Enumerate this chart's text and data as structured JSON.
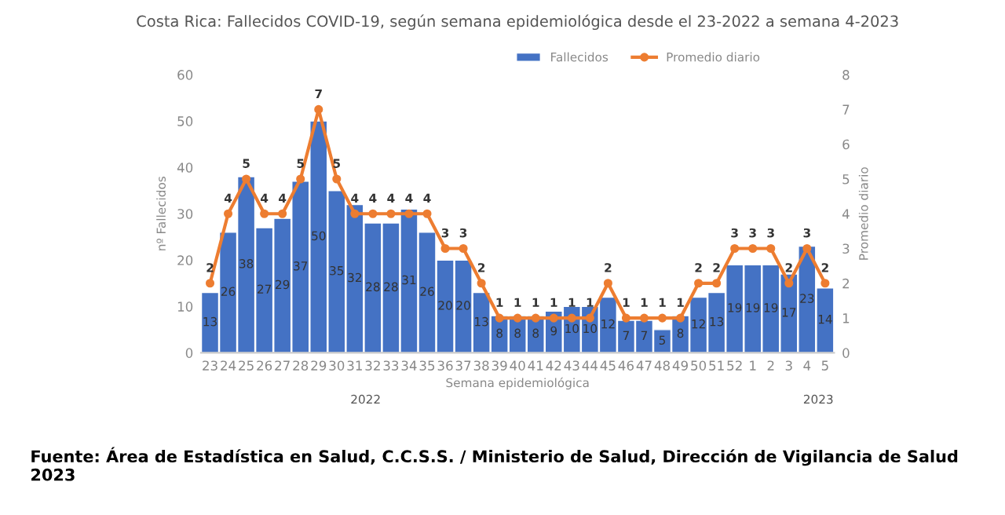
{
  "chart_data": {
    "type": "bar",
    "title": "Costa Rica: Fallecidos COVID-19, según semana epidemiológica desde el 23-2022 a semana 4-2023",
    "xlabel": "Semana epidemiológica",
    "ylabel": "nº Fallecidos",
    "y2label": "Promedio diario",
    "categories": [
      "23",
      "24",
      "25",
      "26",
      "27",
      "28",
      "29",
      "30",
      "31",
      "32",
      "33",
      "34",
      "35",
      "36",
      "37",
      "38",
      "39",
      "40",
      "41",
      "42",
      "43",
      "44",
      "45",
      "46",
      "47",
      "48",
      "49",
      "50",
      "51",
      "52",
      "1",
      "2",
      "3",
      "4",
      "5"
    ],
    "series": [
      {
        "name": "Fallecidos",
        "color": "#4472c4",
        "values": [
          13,
          26,
          38,
          27,
          29,
          37,
          50,
          35,
          32,
          28,
          28,
          31,
          26,
          20,
          20,
          13,
          8,
          8,
          8,
          9,
          10,
          10,
          12,
          7,
          7,
          5,
          8,
          12,
          13,
          19,
          19,
          19,
          17,
          23,
          14
        ]
      },
      {
        "name": "Promedio diario",
        "type": "line",
        "axis": "y2",
        "color": "#ed7d31",
        "values": [
          2,
          4,
          5,
          4,
          4,
          5,
          7,
          5,
          4,
          4,
          4,
          4,
          4,
          3,
          3,
          2,
          1,
          1,
          1,
          1,
          1,
          1,
          2,
          1,
          1,
          1,
          1,
          2,
          2,
          3,
          3,
          3,
          2,
          3,
          2
        ]
      }
    ],
    "ylim": [
      0,
      60
    ],
    "yticks": [
      0,
      10,
      20,
      30,
      40,
      50,
      60
    ],
    "y2lim": [
      0,
      8
    ],
    "y2ticks": [
      0,
      1,
      2,
      3,
      4,
      5,
      6,
      7,
      8
    ],
    "data_labels": true,
    "marker": "circle",
    "grid": false,
    "legend": "top right",
    "annotations": [
      "2022",
      "2023",
      "Fuente: Área de Estadística en Salud, C.C.S.S. / Ministerio de Salud, Dirección de Vigilancia de Salud 2023"
    ]
  }
}
